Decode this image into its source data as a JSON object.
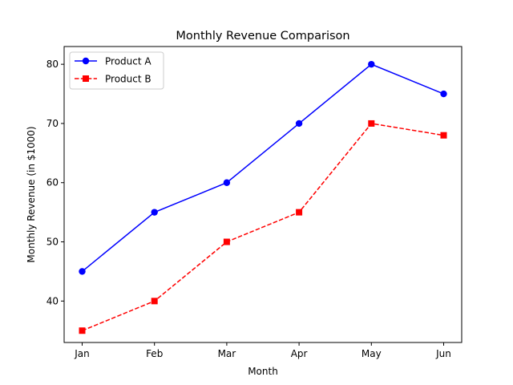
{
  "chart_data": {
    "type": "line",
    "title": "Monthly Revenue Comparison",
    "xlabel": "Month",
    "ylabel": "Monthly Revenue (in $1000)",
    "categories": [
      "Jan",
      "Feb",
      "Mar",
      "Apr",
      "May",
      "Jun"
    ],
    "ylim": [
      33,
      83
    ],
    "yticks": [
      40,
      50,
      60,
      70,
      80
    ],
    "grid": false,
    "legend_position": "top-left",
    "series": [
      {
        "name": "Product A",
        "values": [
          45,
          55,
          60,
          70,
          80,
          75
        ],
        "color": "#0000ff",
        "marker": "circle",
        "linestyle": "solid"
      },
      {
        "name": "Product B",
        "values": [
          35,
          40,
          50,
          55,
          70,
          68
        ],
        "color": "#ff0000",
        "marker": "square",
        "linestyle": "dashed"
      }
    ]
  }
}
